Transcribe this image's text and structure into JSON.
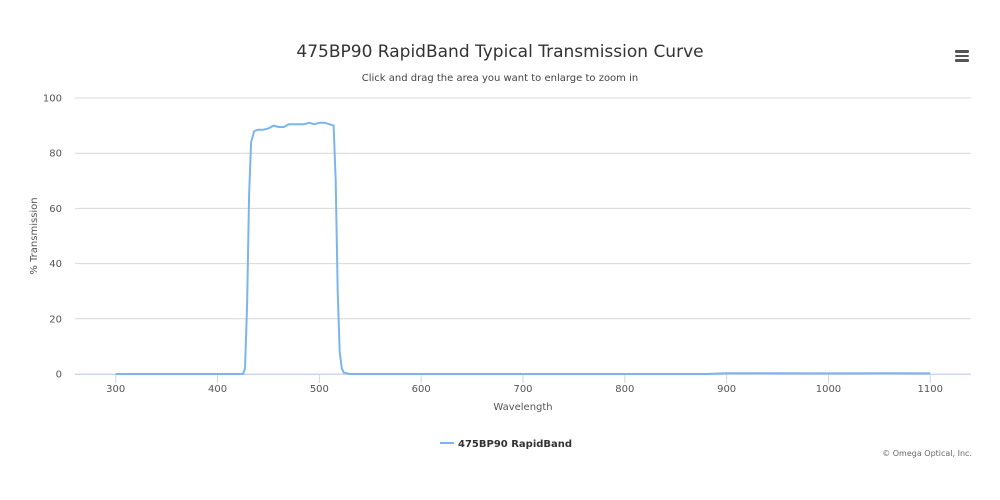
{
  "chart_data": {
    "type": "line",
    "title": "475BP90 RapidBand Typical Transmission Curve",
    "subtitle": "Click and drag the area you want to enlarge to zoom in",
    "xlabel": "Wavelength",
    "ylabel": "% Transmission",
    "xlim": [
      260,
      1140
    ],
    "ylim": [
      0,
      100
    ],
    "x_ticks": [
      300,
      400,
      500,
      600,
      700,
      800,
      900,
      1000,
      1100
    ],
    "y_ticks": [
      0,
      20,
      40,
      60,
      80,
      100
    ],
    "grid": true,
    "legend_position": "bottom-center",
    "series": [
      {
        "name": "475BP90 RapidBand",
        "color": "#7cb5ec",
        "x": [
          300,
          400,
          425,
          427,
          429,
          431,
          433,
          436,
          440,
          445,
          450,
          455,
          460,
          465,
          470,
          475,
          480,
          485,
          490,
          495,
          500,
          505,
          510,
          514,
          516,
          518,
          520,
          522,
          524,
          527,
          530,
          600,
          700,
          800,
          880,
          900,
          1000,
          1050,
          1100
        ],
        "values": [
          0,
          0,
          0,
          2,
          25,
          65,
          84,
          88,
          88.5,
          88.5,
          89,
          90,
          89.5,
          89.5,
          90.5,
          90.5,
          90.5,
          90.5,
          91,
          90.5,
          91,
          91,
          90.5,
          90,
          70,
          30,
          8,
          2,
          0.5,
          0.2,
          0,
          0,
          0,
          0,
          0,
          0.3,
          0.2,
          0.3,
          0.2
        ]
      }
    ]
  },
  "credits": "© Omega Optical, Inc.",
  "icons": {
    "menu": "hamburger-menu-icon"
  }
}
